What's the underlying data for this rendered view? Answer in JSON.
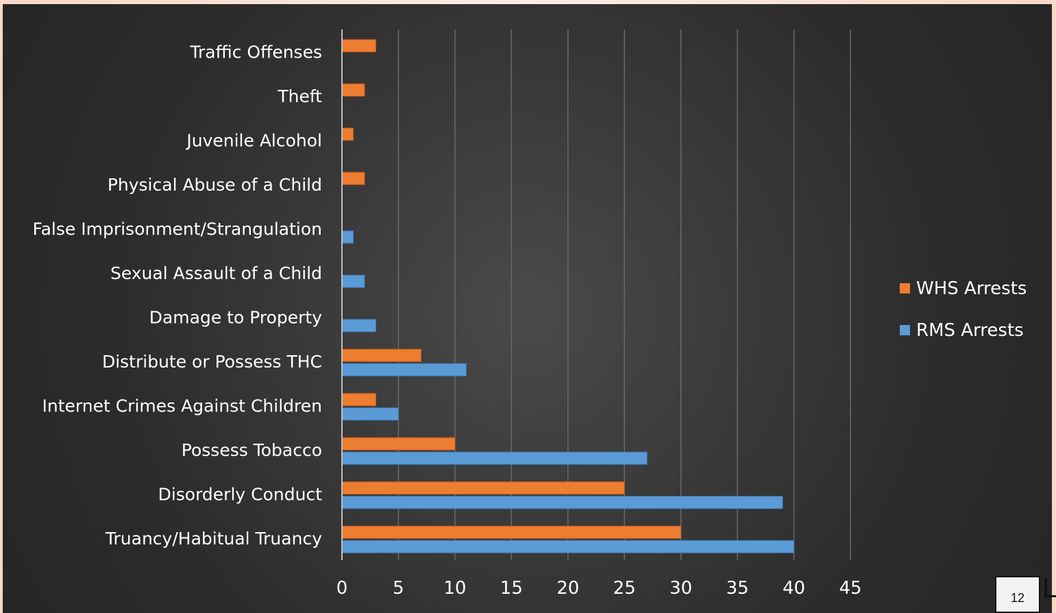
{
  "slide": {
    "page_number": "12",
    "edge_letter": "L"
  },
  "colors": {
    "whs": "#ed7d31",
    "rms": "#5b9bd5",
    "text": "#ffffff",
    "grid": "#6a6a6a"
  },
  "chart_data": {
    "type": "bar",
    "orientation": "horizontal",
    "categories": [
      "Traffic Offenses",
      "Theft",
      "Juvenile Alcohol",
      "Physical Abuse of a Child",
      "False Imprisonment/Strangulation",
      "Sexual Assault of a Child",
      "Damage to Property",
      "Distribute or Possess THC",
      "Internet Crimes Against Children",
      "Possess Tobacco",
      "Disorderly Conduct",
      "Truancy/Habitual Truancy"
    ],
    "series": [
      {
        "name": "WHS Arrests",
        "color": "#ed7d31",
        "values": [
          3,
          2,
          1,
          2,
          0,
          0,
          0,
          7,
          3,
          10,
          25,
          30
        ]
      },
      {
        "name": "RMS Arrests",
        "color": "#5b9bd5",
        "values": [
          0,
          0,
          0,
          0,
          1,
          2,
          3,
          11,
          5,
          27,
          39,
          40
        ]
      }
    ],
    "xlim": [
      0,
      45
    ],
    "xticks": [
      0,
      5,
      10,
      15,
      20,
      25,
      30,
      35,
      40,
      45
    ],
    "grid": true,
    "legend_position": "right"
  }
}
